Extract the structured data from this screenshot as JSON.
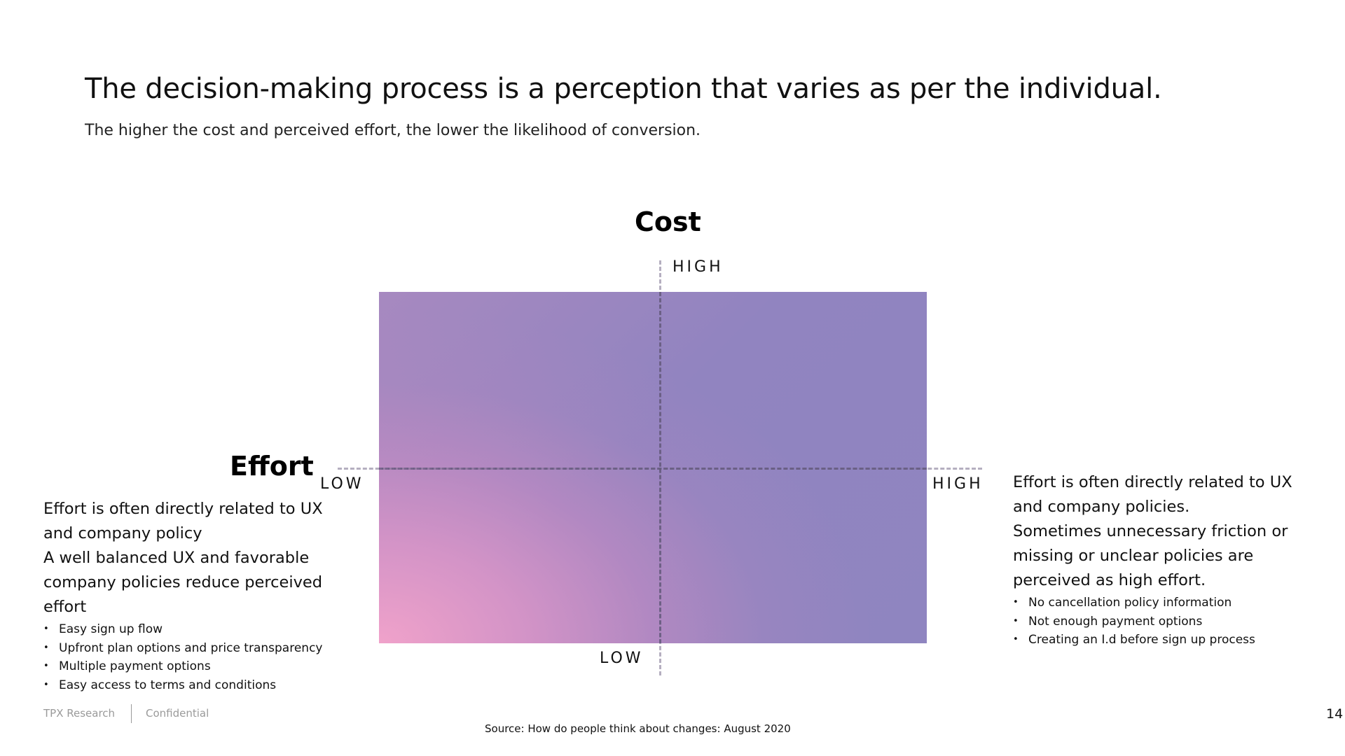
{
  "slide": {
    "title": "The decision-making process is a perception that varies as per the individual.",
    "subtitle": "The higher the cost and perceived effort, the lower the likelihood of conversion."
  },
  "matrix": {
    "cost_label": "Cost",
    "effort_label": "Effort",
    "cost_high": "HIGH",
    "cost_low": "LOW",
    "effort_low": "LOW",
    "effort_high": "HIGH",
    "gradient_colors": {
      "pink": "#f0a2ca",
      "purple": "#8f85c0"
    }
  },
  "left_panel": {
    "lines": [
      "Effort is often directly related to UX",
      "and company policy",
      "A well balanced UX and favorable",
      "company policies reduce perceived",
      "effort"
    ],
    "bullets": [
      "Easy sign up flow",
      "Upfront plan options and price transparency",
      "Multiple payment options",
      "Easy access to terms and conditions"
    ]
  },
  "right_panel": {
    "lines": [
      "Effort is often directly related to UX",
      "and company policies.",
      "Sometimes unnecessary friction or",
      "missing or unclear policies are",
      "perceived as high effort."
    ],
    "bullets": [
      "No cancellation policy information",
      "Not enough payment options",
      "Creating an I.d before sign up process"
    ]
  },
  "footer": {
    "brand": "TPX Research",
    "confidential": "Confidential",
    "source": "Source: How do people think about changes: August 2020",
    "page_number": "14"
  }
}
